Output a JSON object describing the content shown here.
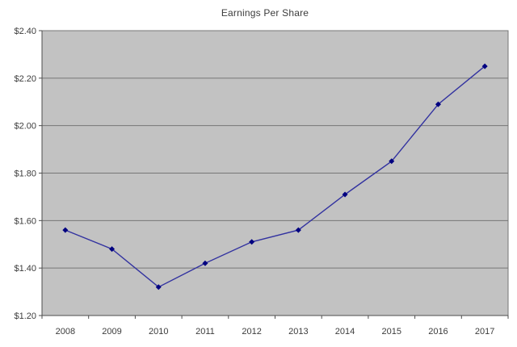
{
  "chart_data": {
    "type": "line",
    "title": "Earnings Per Share",
    "categories": [
      "2008",
      "2009",
      "2010",
      "2011",
      "2012",
      "2013",
      "2014",
      "2015",
      "2016",
      "2017"
    ],
    "values": [
      1.56,
      1.48,
      1.32,
      1.42,
      1.51,
      1.56,
      1.71,
      1.85,
      2.09,
      2.25
    ],
    "ylim": [
      1.2,
      2.4
    ],
    "ytick_step": 0.2,
    "ytick_labels": [
      "$1.20",
      "$1.40",
      "$1.60",
      "$1.80",
      "$2.00",
      "$2.20",
      "$2.40"
    ],
    "xlabel": "",
    "ylabel": "",
    "grid": true,
    "legend": "none",
    "marker": "diamond",
    "colors": {
      "line": "#3232a0",
      "marker": "#000080",
      "plot_background": "#c2c2c2",
      "gridline": "#767676",
      "axis": "#4d4d4d",
      "tick_text": "#3c3c3c",
      "title_text": "#3c3c3c",
      "page_background": "#ffffff"
    }
  }
}
